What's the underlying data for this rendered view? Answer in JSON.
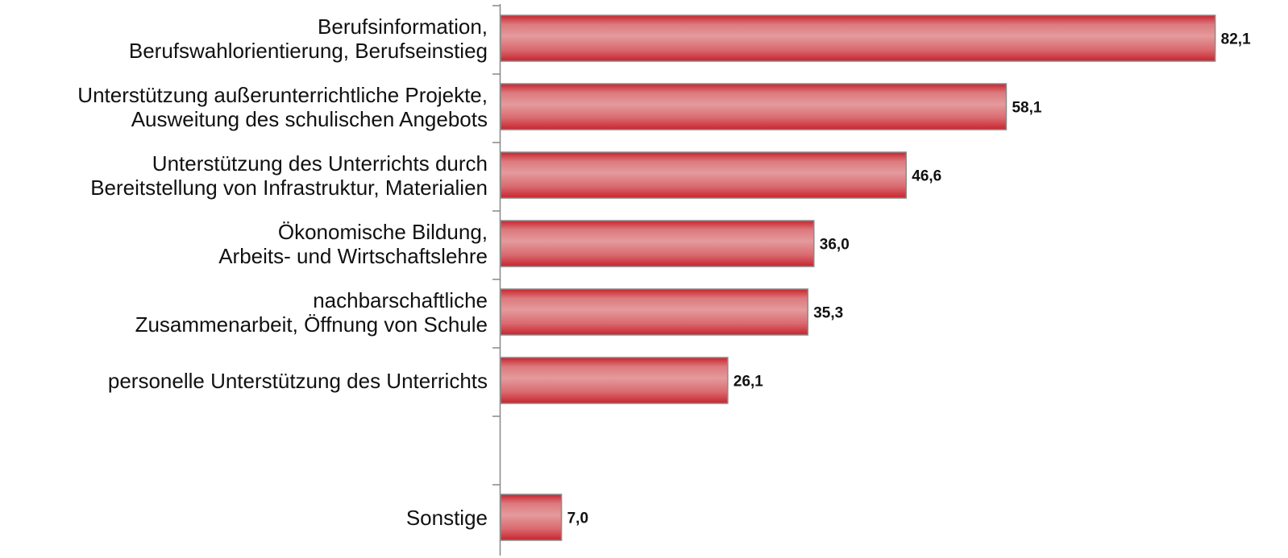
{
  "chart_data": {
    "type": "barh",
    "categories": [
      "Berufsinformation,\nBerufswahlorientierung, Berufseinstieg",
      "Unterstützung außerunterrichtliche Projekte,\nAusweitung des schulischen Angebots",
      "Unterstützung des Unterrichts durch\nBereitstellung von Infrastruktur, Materialien",
      "Ökonomische Bildung,\nArbeits- und Wirtschaftslehre",
      "nachbarschaftliche\nZusammenarbeit, Öffnung von Schule",
      "personelle Unterstützung des Unterrichts",
      null,
      "Sonstige"
    ],
    "values": [
      82.1,
      58.1,
      46.6,
      36.0,
      35.3,
      26.1,
      null,
      7.0
    ],
    "value_labels": [
      "82,1",
      "58,1",
      "46,6",
      "36,0",
      "35,3",
      "26,1",
      null,
      "7,0"
    ],
    "color": "#c8242e"
  }
}
